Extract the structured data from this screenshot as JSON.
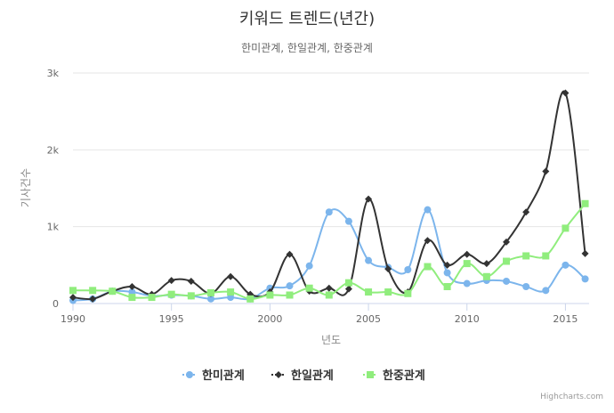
{
  "chart_data": {
    "type": "line",
    "title": "키워드 트렌드(년간)",
    "subtitle": "한미관계, 한일관계, 한중관계",
    "xlabel": "년도",
    "ylabel": "기사건수",
    "xlim": [
      1990,
      2016.2
    ],
    "ylim": [
      0,
      3000
    ],
    "x_ticks": [
      1990,
      1995,
      2000,
      2005,
      2010,
      2015
    ],
    "y_ticks": [
      {
        "value": 0,
        "label": "0"
      },
      {
        "value": 1000,
        "label": "1k"
      },
      {
        "value": 2000,
        "label": "2k"
      },
      {
        "value": 3000,
        "label": "3k"
      }
    ],
    "grid": true,
    "legend_position": "bottom-center",
    "x": [
      1990,
      1991,
      1992,
      1993,
      1994,
      1995,
      1996,
      1997,
      1998,
      1999,
      2000,
      2001,
      2002,
      2003,
      2004,
      2005,
      2006,
      2007,
      2008,
      2009,
      2010,
      2011,
      2012,
      2013,
      2014,
      2015,
      2016
    ],
    "series": [
      {
        "name": "한미관계",
        "color": "#7cb5ec",
        "marker": "circle",
        "values": [
          40,
          60,
          160,
          150,
          100,
          110,
          100,
          60,
          80,
          60,
          200,
          230,
          490,
          1190,
          1070,
          560,
          470,
          440,
          1220,
          400,
          260,
          300,
          290,
          220,
          170,
          500,
          320
        ]
      },
      {
        "name": "한일관계",
        "color": "#333333",
        "marker": "diamond",
        "values": [
          80,
          60,
          160,
          220,
          120,
          300,
          290,
          130,
          350,
          120,
          150,
          640,
          160,
          200,
          190,
          1360,
          450,
          150,
          820,
          500,
          640,
          520,
          800,
          1190,
          1720,
          2740,
          650
        ]
      },
      {
        "name": "한중관계",
        "color": "#90ed7d",
        "marker": "square",
        "values": [
          170,
          170,
          160,
          80,
          80,
          120,
          100,
          140,
          150,
          60,
          110,
          110,
          200,
          110,
          270,
          150,
          150,
          130,
          480,
          220,
          520,
          350,
          550,
          620,
          620,
          980,
          1300
        ]
      }
    ]
  },
  "credit": "Highcharts.com"
}
